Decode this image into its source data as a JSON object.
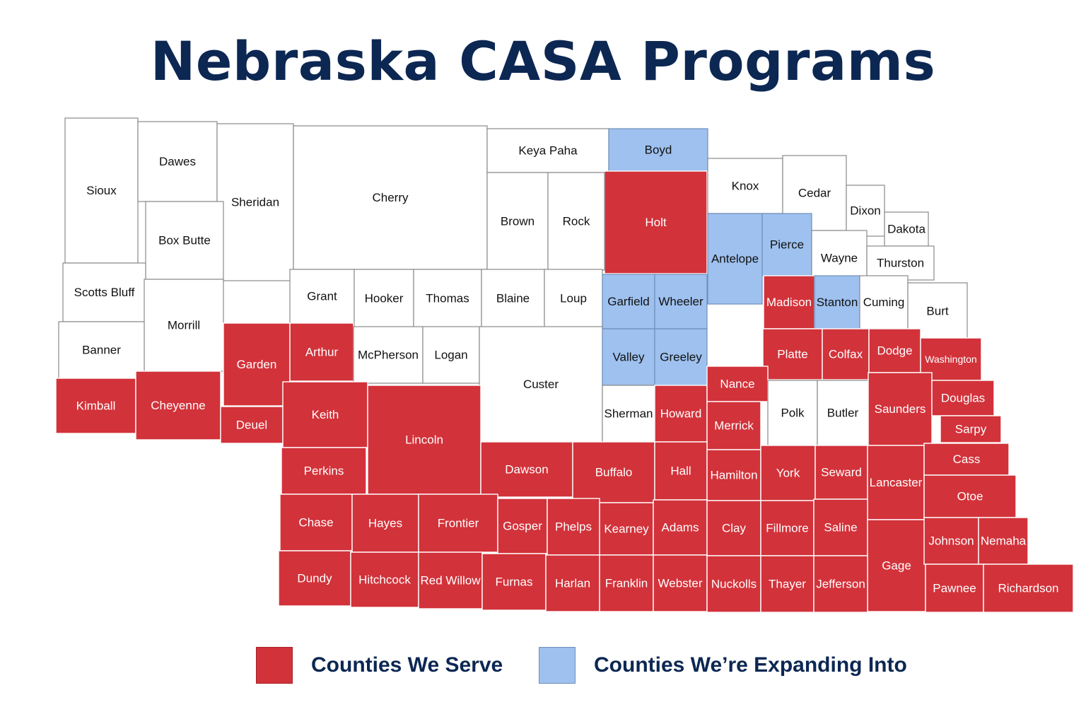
{
  "title": "Nebraska CASA Programs",
  "colors": {
    "serve": "#d2323a",
    "expand": "#9ec1ef",
    "none": "#ffffff",
    "title": "#0c2752"
  },
  "legend": [
    {
      "status": "serve",
      "label": "Counties We Serve"
    },
    {
      "status": "expand",
      "label": "Counties We’re Expanding Into"
    }
  ],
  "counties": [
    {
      "name": "Sioux",
      "status": "none"
    },
    {
      "name": "Dawes",
      "status": "none"
    },
    {
      "name": "Sheridan",
      "status": "none"
    },
    {
      "name": "Cherry",
      "status": "none"
    },
    {
      "name": "Keya Paha",
      "status": "none"
    },
    {
      "name": "Boyd",
      "status": "expand"
    },
    {
      "name": "Holt",
      "status": "serve"
    },
    {
      "name": "Brown",
      "status": "none"
    },
    {
      "name": "Rock",
      "status": "none"
    },
    {
      "name": "Knox",
      "status": "none"
    },
    {
      "name": "Cedar",
      "status": "none"
    },
    {
      "name": "Dixon",
      "status": "none"
    },
    {
      "name": "Dakota",
      "status": "none"
    },
    {
      "name": "Box Butte",
      "status": "none"
    },
    {
      "name": "Antelope",
      "status": "expand"
    },
    {
      "name": "Pierce",
      "status": "expand"
    },
    {
      "name": "Wayne",
      "status": "none"
    },
    {
      "name": "Thurston",
      "status": "none"
    },
    {
      "name": "Scotts Bluff",
      "status": "none"
    },
    {
      "name": "Morrill",
      "status": "none"
    },
    {
      "name": "Grant",
      "status": "none"
    },
    {
      "name": "Hooker",
      "status": "none"
    },
    {
      "name": "Thomas",
      "status": "none"
    },
    {
      "name": "Blaine",
      "status": "none"
    },
    {
      "name": "Loup",
      "status": "none"
    },
    {
      "name": "Garfield",
      "status": "expand"
    },
    {
      "name": "Wheeler",
      "status": "expand"
    },
    {
      "name": "Madison",
      "status": "serve"
    },
    {
      "name": "Stanton",
      "status": "expand"
    },
    {
      "name": "Cuming",
      "status": "none"
    },
    {
      "name": "Burt",
      "status": "none"
    },
    {
      "name": "Banner",
      "status": "none"
    },
    {
      "name": "Garden",
      "status": "serve"
    },
    {
      "name": "Arthur",
      "status": "serve"
    },
    {
      "name": "McPherson",
      "status": "none"
    },
    {
      "name": "Logan",
      "status": "none"
    },
    {
      "name": "Custer",
      "status": "none"
    },
    {
      "name": "Valley",
      "status": "expand"
    },
    {
      "name": "Greeley",
      "status": "expand"
    },
    {
      "name": "Platte",
      "status": "serve"
    },
    {
      "name": "Colfax",
      "status": "serve"
    },
    {
      "name": "Dodge",
      "status": "serve"
    },
    {
      "name": "Washington",
      "status": "serve"
    },
    {
      "name": "Kimball",
      "status": "serve"
    },
    {
      "name": "Cheyenne",
      "status": "serve"
    },
    {
      "name": "Deuel",
      "status": "serve"
    },
    {
      "name": "Keith",
      "status": "serve"
    },
    {
      "name": "Lincoln",
      "status": "serve"
    },
    {
      "name": "Sherman",
      "status": "none"
    },
    {
      "name": "Howard",
      "status": "serve"
    },
    {
      "name": "Nance",
      "status": "serve"
    },
    {
      "name": "Merrick",
      "status": "serve"
    },
    {
      "name": "Polk",
      "status": "none"
    },
    {
      "name": "Butler",
      "status": "none"
    },
    {
      "name": "Saunders",
      "status": "serve"
    },
    {
      "name": "Douglas",
      "status": "serve"
    },
    {
      "name": "Sarpy",
      "status": "serve"
    },
    {
      "name": "Perkins",
      "status": "serve"
    },
    {
      "name": "Dawson",
      "status": "serve"
    },
    {
      "name": "Buffalo",
      "status": "serve"
    },
    {
      "name": "Hall",
      "status": "serve"
    },
    {
      "name": "Hamilton",
      "status": "serve"
    },
    {
      "name": "York",
      "status": "serve"
    },
    {
      "name": "Seward",
      "status": "serve"
    },
    {
      "name": "Lancaster",
      "status": "serve"
    },
    {
      "name": "Cass",
      "status": "serve"
    },
    {
      "name": "Otoe",
      "status": "serve"
    },
    {
      "name": "Chase",
      "status": "serve"
    },
    {
      "name": "Hayes",
      "status": "serve"
    },
    {
      "name": "Frontier",
      "status": "serve"
    },
    {
      "name": "Gosper",
      "status": "serve"
    },
    {
      "name": "Phelps",
      "status": "serve"
    },
    {
      "name": "Kearney",
      "status": "serve"
    },
    {
      "name": "Adams",
      "status": "serve"
    },
    {
      "name": "Clay",
      "status": "serve"
    },
    {
      "name": "Fillmore",
      "status": "serve"
    },
    {
      "name": "Saline",
      "status": "serve"
    },
    {
      "name": "Gage",
      "status": "serve"
    },
    {
      "name": "Johnson",
      "status": "serve"
    },
    {
      "name": "Nemaha",
      "status": "serve"
    },
    {
      "name": "Dundy",
      "status": "serve"
    },
    {
      "name": "Hitchcock",
      "status": "serve"
    },
    {
      "name": "Red Willow",
      "status": "serve"
    },
    {
      "name": "Furnas",
      "status": "serve"
    },
    {
      "name": "Harlan",
      "status": "serve"
    },
    {
      "name": "Franklin",
      "status": "serve"
    },
    {
      "name": "Webster",
      "status": "serve"
    },
    {
      "name": "Nuckolls",
      "status": "serve"
    },
    {
      "name": "Thayer",
      "status": "serve"
    },
    {
      "name": "Jefferson",
      "status": "serve"
    },
    {
      "name": "Pawnee",
      "status": "serve"
    },
    {
      "name": "Richardson",
      "status": "serve"
    }
  ]
}
